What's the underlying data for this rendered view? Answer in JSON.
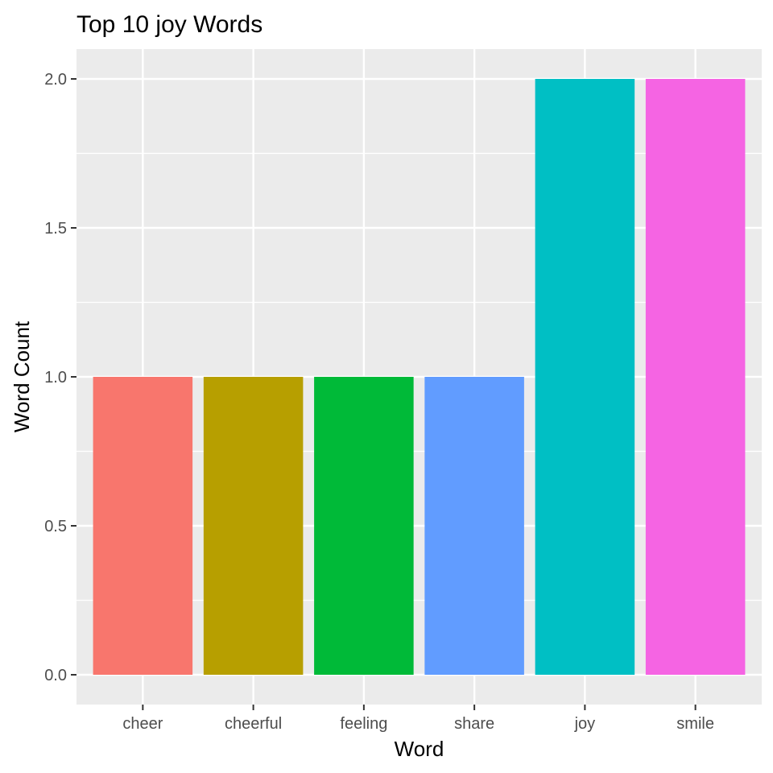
{
  "chart_data": {
    "type": "bar",
    "title": "Top 10 joy Words",
    "xlabel": "Word",
    "ylabel": "Word Count",
    "categories": [
      "cheer",
      "cheerful",
      "feeling",
      "share",
      "joy",
      "smile"
    ],
    "values": [
      1,
      1,
      1,
      1,
      2,
      2
    ],
    "colors": [
      "#F8766D",
      "#B79F00",
      "#00BA38",
      "#619CFF",
      "#00BFC4",
      "#F564E3"
    ],
    "ylim": [
      -0.1,
      2.1
    ],
    "yticks": [
      0.0,
      0.5,
      1.0,
      1.5,
      2.0
    ],
    "ytick_labels": [
      "0.0",
      "0.5",
      "1.0",
      "1.5",
      "2.0"
    ],
    "grid": true,
    "legend": "none",
    "panel_background": "#EBEBEB",
    "grid_color": "#FFFFFF",
    "tick_color": "#333333"
  }
}
